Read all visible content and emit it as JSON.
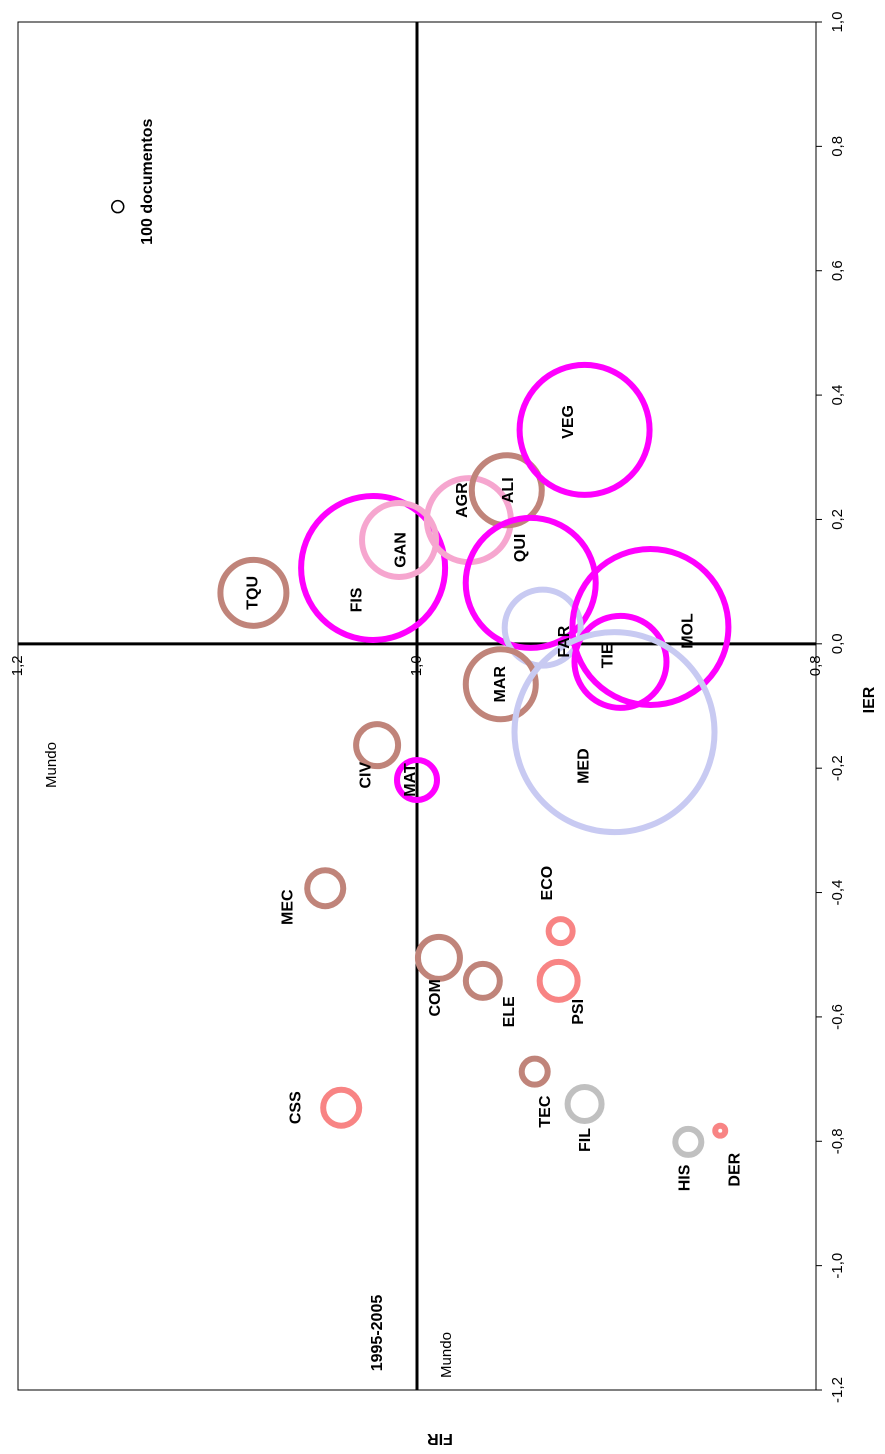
{
  "chart_data": {
    "type": "bubble",
    "x_label": "FIR",
    "y_label": "IER",
    "xlim": [
      1.2,
      0.8
    ],
    "ylim": [
      -1.2,
      1.0
    ],
    "xticks": [
      {
        "value": 1.2,
        "label": "1,2"
      },
      {
        "value": 1.0,
        "label": "1,0"
      },
      {
        "value": 0.8,
        "label": "0,8"
      }
    ],
    "yticks": [
      {
        "value": -1.2,
        "label": "-1,2"
      },
      {
        "value": -1.0,
        "label": "-1,0"
      },
      {
        "value": -0.8,
        "label": "-0,8"
      },
      {
        "value": -0.6,
        "label": "-0,6"
      },
      {
        "value": -0.4,
        "label": "-0,4"
      },
      {
        "value": -0.2,
        "label": "-0,2"
      },
      {
        "value": 0.0,
        "label": "0,0"
      },
      {
        "value": 0.2,
        "label": "0,2"
      },
      {
        "value": 0.4,
        "label": "0,4"
      },
      {
        "value": 0.6,
        "label": "0,6"
      },
      {
        "value": 0.8,
        "label": "0,8"
      },
      {
        "value": 1.0,
        "label": "1,0"
      }
    ],
    "categories": [
      "TQU",
      "FIS",
      "GAN",
      "AGR",
      "ALI",
      "VEG",
      "QUI",
      "FAR",
      "MOL",
      "TIE",
      "MAR",
      "MED",
      "CIV",
      "MAT",
      "MEC",
      "COM",
      "ELE",
      "ECO",
      "PSI",
      "TEC",
      "FIL",
      "CSS",
      "HIS",
      "DER"
    ],
    "x": [
      1.082,
      1.022,
      1.009,
      0.974,
      0.955,
      0.916,
      0.943,
      0.937,
      0.883,
      0.898,
      0.958,
      0.901,
      1.02,
      1.0,
      1.046,
      0.989,
      0.967,
      0.928,
      0.929,
      0.941,
      0.916,
      1.038,
      0.864,
      0.848
    ],
    "values": [
      0.082,
      0.122,
      0.167,
      0.199,
      0.247,
      0.344,
      0.098,
      0.026,
      0.027,
      -0.029,
      -0.065,
      -0.142,
      -0.163,
      -0.219,
      -0.393,
      -0.505,
      -0.542,
      -0.462,
      -0.542,
      -0.688,
      -0.74,
      -0.746,
      -0.801,
      -0.783
    ],
    "sizes": [
      3025,
      14400,
      3803,
      4900,
      3403,
      11736,
      11736,
      4011,
      16900,
      5878,
      3403,
      27778,
      1225,
      1111,
      900,
      1225,
      803,
      400,
      1003,
      469,
      803,
      900,
      469,
      69
    ],
    "colors": [
      "#c0847a",
      "#ff00ff",
      "#f6a6cf",
      "#f6a6cf",
      "#c0847a",
      "#ff00ff",
      "#ff00ff",
      "#c8caf2",
      "#ff00ff",
      "#ff00ff",
      "#c0847a",
      "#c8caf2",
      "#c0847a",
      "#ff00ff",
      "#c0847a",
      "#c0847a",
      "#c0847a",
      "#f88484",
      "#f88484",
      "#c0847a",
      "#c0c0c0",
      "#f88484",
      "#c0c0c0",
      "#f88484"
    ],
    "size_reference": {
      "label": "100 documentos",
      "x": 1.15,
      "y": 0.703,
      "size": 100,
      "color": "#000000"
    },
    "annotations": [
      "Mundo",
      "Mundo",
      "1995-2005"
    ]
  }
}
